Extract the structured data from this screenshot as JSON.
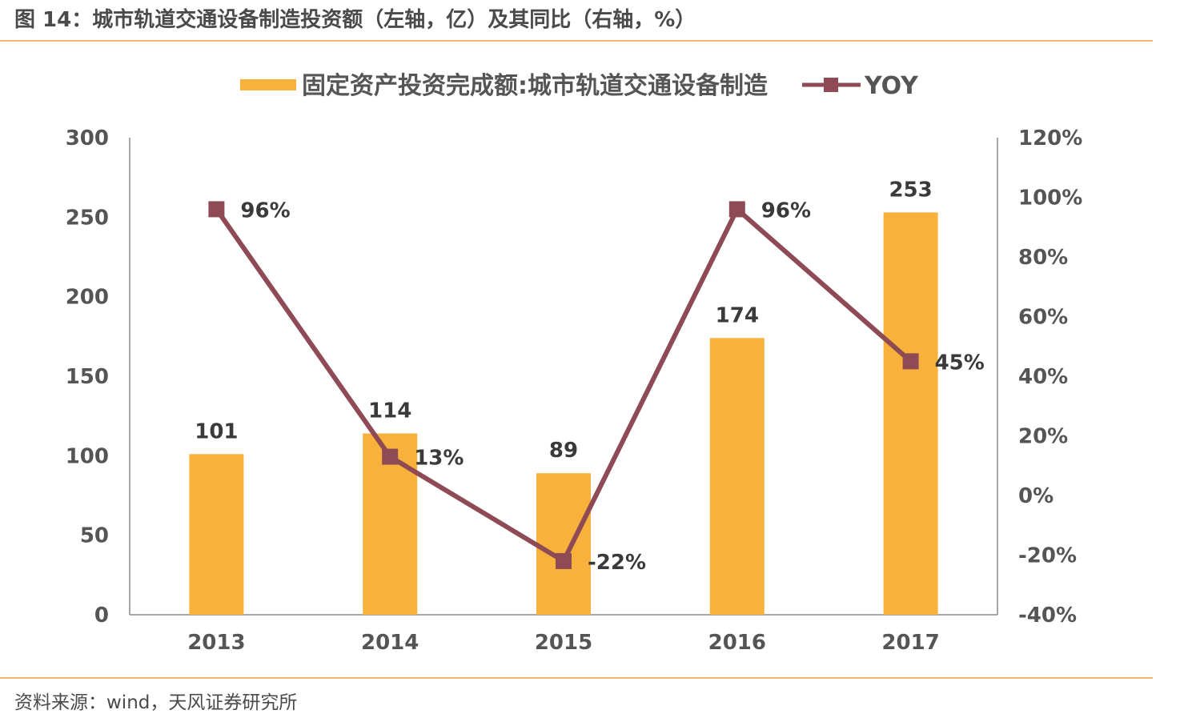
{
  "figure": {
    "title": "图 14：城市轨道交通设备制造投资额（左轴，亿）及其同比（右轴，%）",
    "source": "资料来源：wind，天风证券研究所"
  },
  "colors": {
    "bar": "#f8b13b",
    "line": "#8e4a55",
    "axis": "#8c8c8c",
    "rule": "#f2b56b"
  },
  "chart_data": {
    "type": "bar+line",
    "categories": [
      "2013",
      "2014",
      "2015",
      "2016",
      "2017"
    ],
    "series": [
      {
        "name": "固定资产投资完成额:城市轨道交通设备制造",
        "type": "bar",
        "axis": "left",
        "values": [
          101,
          114,
          89,
          174,
          253
        ],
        "labels": [
          "101",
          "114",
          "89",
          "174",
          "253"
        ]
      },
      {
        "name": "YOY",
        "type": "line",
        "axis": "right",
        "values": [
          96,
          13,
          -22,
          96,
          45
        ],
        "labels": [
          "96%",
          "13%",
          "-22%",
          "96%",
          "45%"
        ]
      }
    ],
    "y_left": {
      "range": [
        0,
        300
      ],
      "ticks": [
        0,
        50,
        100,
        150,
        200,
        250,
        300
      ],
      "tick_labels": [
        "0",
        "50",
        "100",
        "150",
        "200",
        "250",
        "300"
      ]
    },
    "y_right": {
      "range": [
        -40,
        120
      ],
      "ticks": [
        -40,
        -20,
        0,
        20,
        40,
        60,
        80,
        100,
        120
      ],
      "tick_labels": [
        "-40%",
        "-20%",
        "0%",
        "20%",
        "40%",
        "60%",
        "80%",
        "100%",
        "120%"
      ]
    },
    "legend_position": "top-center",
    "grid": false
  }
}
